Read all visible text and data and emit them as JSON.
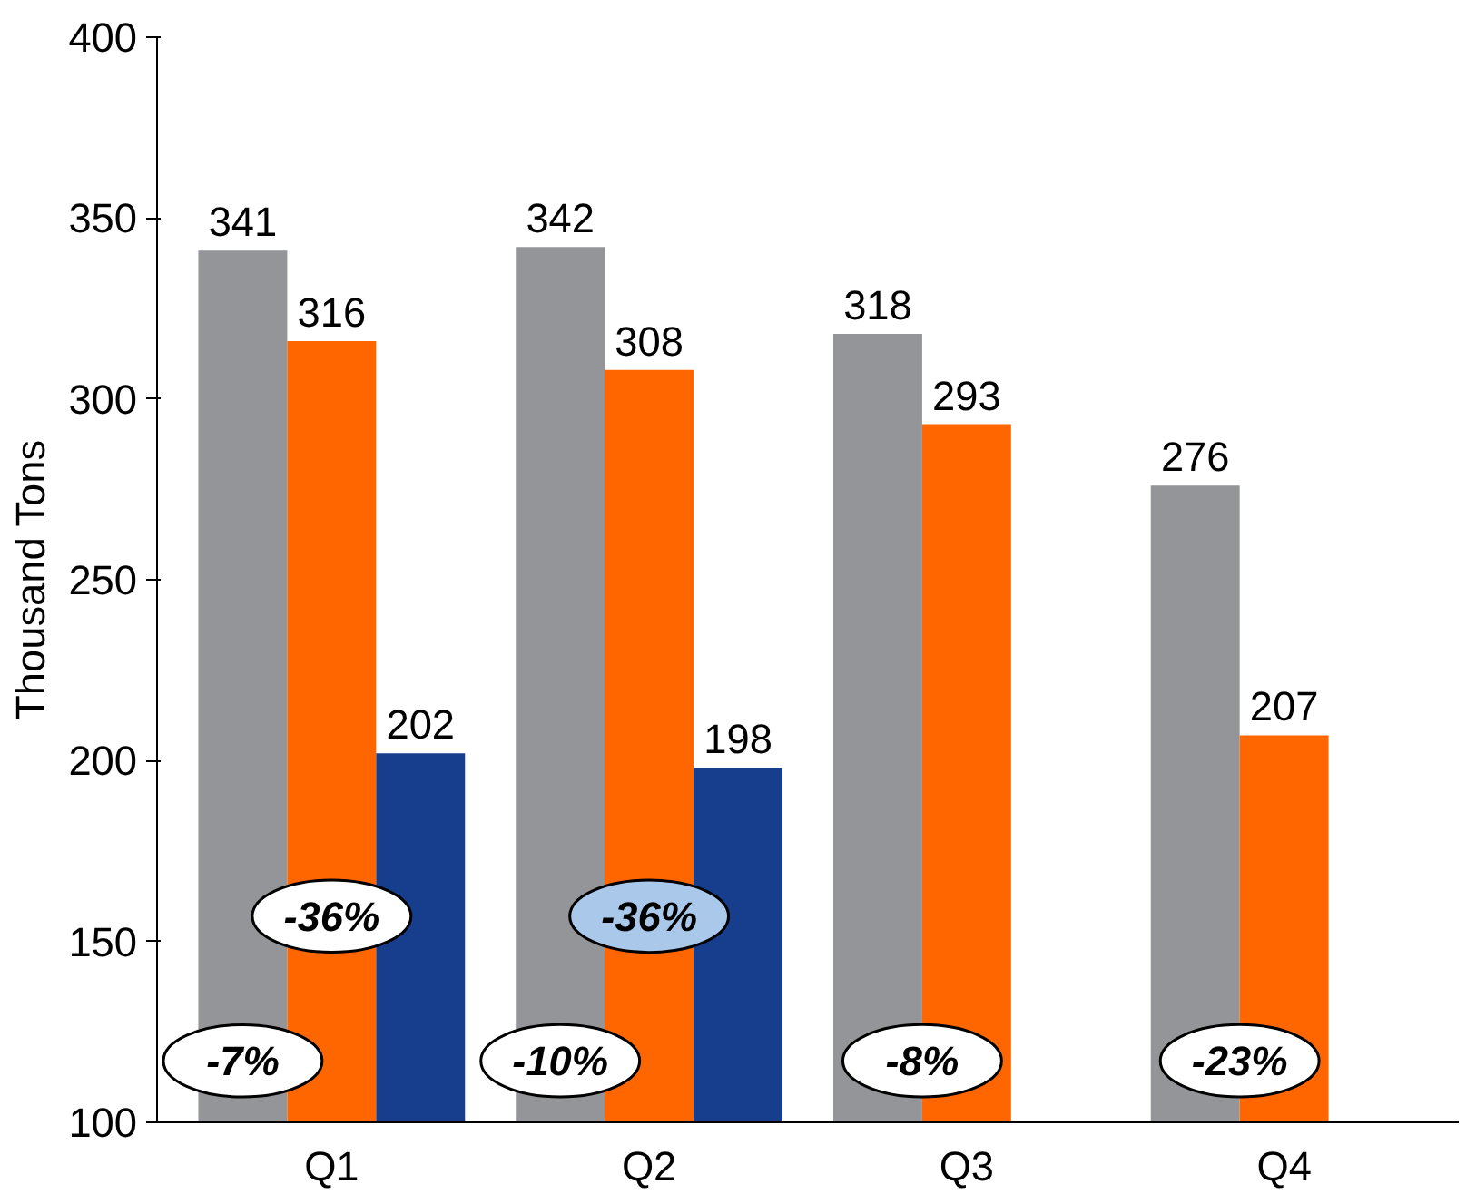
{
  "chart_data": {
    "type": "bar",
    "ylabel": "Thousand Tons",
    "categories": [
      "Q1",
      "Q2",
      "Q3",
      "Q4"
    ],
    "series": [
      {
        "color": "#939598",
        "values": [
          341,
          342,
          318,
          276
        ]
      },
      {
        "color": "#ff6600",
        "values": [
          316,
          308,
          293,
          207
        ]
      },
      {
        "color": "#163e8c",
        "values": [
          202,
          198,
          null,
          null
        ]
      }
    ],
    "ylim": [
      100,
      400
    ],
    "yticks": [
      100,
      150,
      200,
      250,
      300,
      350,
      400
    ],
    "grid": false,
    "data_labels": true,
    "annotations": [
      "-7%",
      "-36%",
      "-10%",
      "-36%",
      "-8%",
      "-23%"
    ]
  }
}
